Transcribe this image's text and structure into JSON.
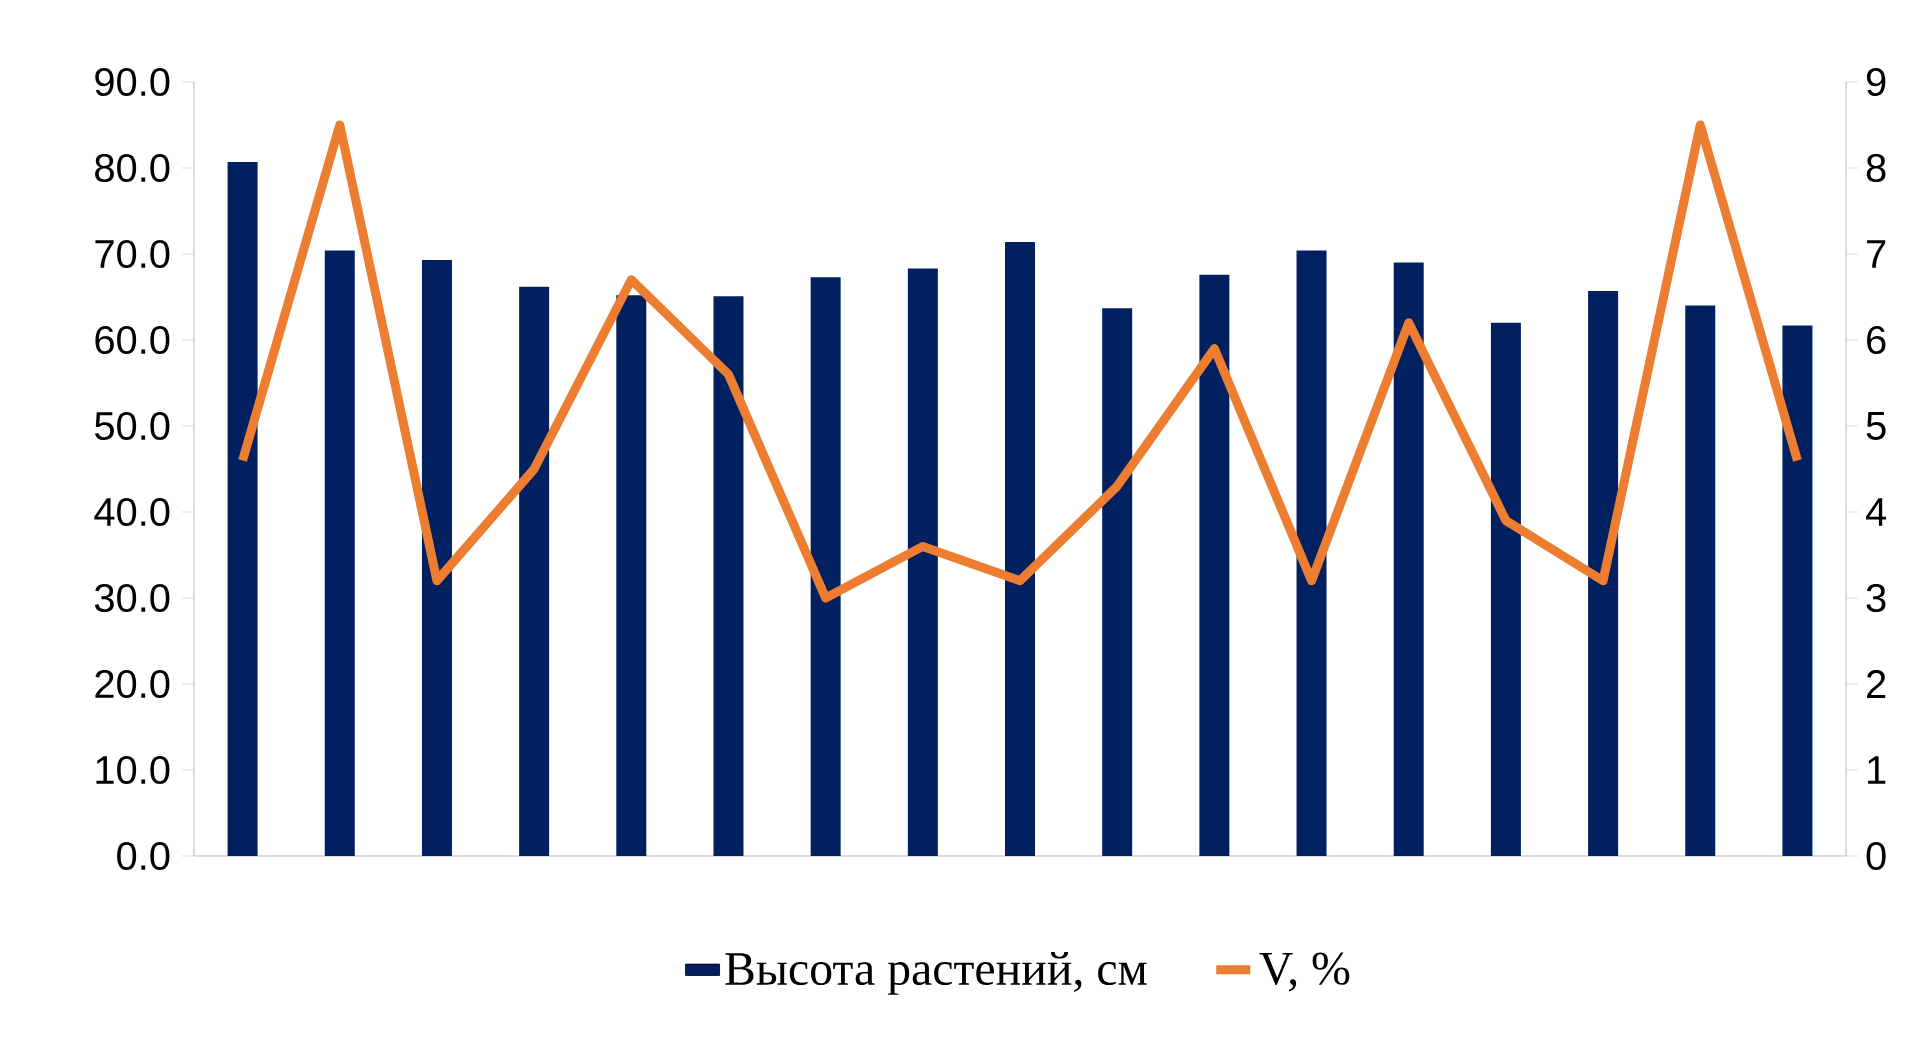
{
  "chart_data": {
    "type": "bar",
    "categories": [
      null,
      null,
      null,
      null,
      null,
      null,
      null,
      null,
      null,
      null,
      null,
      null,
      null,
      null,
      null,
      null,
      null
    ],
    "series": [
      {
        "name": "Высота растений, см",
        "color": "#002060",
        "values": [
          80.7,
          70.4,
          69.3,
          66.2,
          65.2,
          65.1,
          67.3,
          68.3,
          71.4,
          63.7,
          67.6,
          70.4,
          69.0,
          62.0,
          65.7,
          64.0,
          61.7
        ]
      },
      {
        "name": "V, %",
        "type": "line",
        "axis": "y2",
        "color": "#ed7d31",
        "values": [
          4.6,
          8.5,
          3.2,
          4.5,
          6.7,
          5.6,
          3.0,
          3.6,
          3.2,
          4.3,
          5.9,
          3.2,
          6.2,
          3.9,
          3.2,
          8.5,
          4.6
        ]
      }
    ],
    "ylim": [
      0,
      90
    ],
    "yticks": [
      {
        "value": 0,
        "label": "0.0"
      },
      {
        "value": 10,
        "label": "10.0"
      },
      {
        "value": 20,
        "label": "20.0"
      },
      {
        "value": 30,
        "label": "30.0"
      },
      {
        "value": 40,
        "label": "40.0"
      },
      {
        "value": 50,
        "label": "50.0"
      },
      {
        "value": 60,
        "label": "60.0"
      },
      {
        "value": 70,
        "label": "70.0"
      },
      {
        "value": 80,
        "label": "80.0"
      },
      {
        "value": 90,
        "label": "90.0"
      }
    ],
    "y2lim": [
      0,
      9
    ],
    "y2ticks": [
      0,
      1,
      2,
      3,
      4,
      5,
      6,
      7,
      8,
      9
    ],
    "legend": "bottom"
  }
}
